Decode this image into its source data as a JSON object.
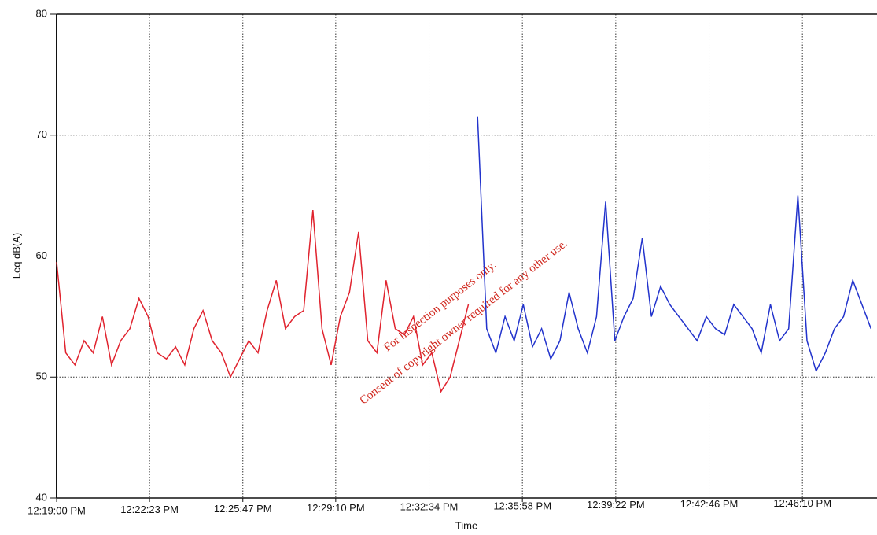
{
  "chart_data": {
    "type": "line",
    "y_label": "Leq dB(A)",
    "x_label": "Time",
    "watermark": [
      "For inspection purposes only.",
      "Consent of copyright owner required for any other use."
    ],
    "xlim": [
      "12:19:00 PM",
      "12:48:53 PM"
    ],
    "xticks": [
      "12:19:00 PM",
      "12:22:23 PM",
      "12:25:47 PM",
      "12:29:10 PM",
      "12:32:34 PM",
      "12:35:58 PM",
      "12:39:22 PM",
      "12:42:46 PM",
      "12:46:10 PM"
    ],
    "ylim": [
      40,
      80
    ],
    "yticks": [
      40,
      50,
      60,
      70,
      80
    ],
    "grid": true,
    "series": [
      {
        "color": "#e0232e",
        "x": [
          "12:19:00 PM",
          "12:19:20 PM",
          "12:19:40 PM",
          "12:20:00 PM",
          "12:20:20 PM",
          "12:20:40 PM",
          "12:21:00 PM",
          "12:21:20 PM",
          "12:21:40 PM",
          "12:22:00 PM",
          "12:22:20 PM",
          "12:22:40 PM",
          "12:23:00 PM",
          "12:23:20 PM",
          "12:23:40 PM",
          "12:24:00 PM",
          "12:24:20 PM",
          "12:24:40 PM",
          "12:25:00 PM",
          "12:25:20 PM",
          "12:25:40 PM",
          "12:26:00 PM",
          "12:26:20 PM",
          "12:26:40 PM",
          "12:27:00 PM",
          "12:27:20 PM",
          "12:27:40 PM",
          "12:28:00 PM",
          "12:28:20 PM",
          "12:28:40 PM",
          "12:29:00 PM",
          "12:29:20 PM",
          "12:29:40 PM",
          "12:30:00 PM",
          "12:30:20 PM",
          "12:30:40 PM",
          "12:31:00 PM",
          "12:31:20 PM",
          "12:31:40 PM",
          "12:32:00 PM",
          "12:32:20 PM",
          "12:32:40 PM",
          "12:33:00 PM",
          "12:33:20 PM",
          "12:33:40 PM",
          "12:34:00 PM"
        ],
        "values": [
          59.5,
          52,
          51,
          53,
          52,
          55,
          51,
          53,
          54,
          56.5,
          55,
          52,
          51.5,
          52.5,
          51,
          54,
          55.5,
          53,
          52,
          50,
          51.5,
          53,
          52,
          55.5,
          58,
          54,
          55,
          55.5,
          63.8,
          54,
          51,
          55,
          57,
          62,
          53,
          52,
          58,
          54,
          53.5,
          55,
          51,
          52,
          48.8,
          50,
          53,
          56
        ]
      },
      {
        "color": "#2233cc",
        "x": [
          "12:34:20 PM",
          "12:34:40 PM",
          "12:35:00 PM",
          "12:35:20 PM",
          "12:35:40 PM",
          "12:36:00 PM",
          "12:36:20 PM",
          "12:36:40 PM",
          "12:37:00 PM",
          "12:37:20 PM",
          "12:37:40 PM",
          "12:38:00 PM",
          "12:38:20 PM",
          "12:38:40 PM",
          "12:39:00 PM",
          "12:39:20 PM",
          "12:39:40 PM",
          "12:40:00 PM",
          "12:40:20 PM",
          "12:40:40 PM",
          "12:41:00 PM",
          "12:41:20 PM",
          "12:41:40 PM",
          "12:42:00 PM",
          "12:42:20 PM",
          "12:42:40 PM",
          "12:43:00 PM",
          "12:43:20 PM",
          "12:43:40 PM",
          "12:44:00 PM",
          "12:44:20 PM",
          "12:44:40 PM",
          "12:45:00 PM",
          "12:45:20 PM",
          "12:45:40 PM",
          "12:46:00 PM",
          "12:46:20 PM",
          "12:46:40 PM",
          "12:47:00 PM",
          "12:47:20 PM",
          "12:47:40 PM",
          "12:48:00 PM",
          "12:48:20 PM",
          "12:48:40 PM"
        ],
        "values": [
          71.5,
          54,
          52,
          55,
          53,
          56,
          52.5,
          54,
          51.5,
          53,
          57,
          54,
          52,
          55,
          64.5,
          53,
          55,
          56.5,
          61.5,
          55,
          57.5,
          56,
          55,
          54,
          53,
          55,
          54,
          53.5,
          56,
          55,
          54,
          52,
          56,
          53,
          54,
          65,
          53,
          50.5,
          52,
          54,
          55,
          58,
          56,
          54
        ]
      }
    ]
  }
}
